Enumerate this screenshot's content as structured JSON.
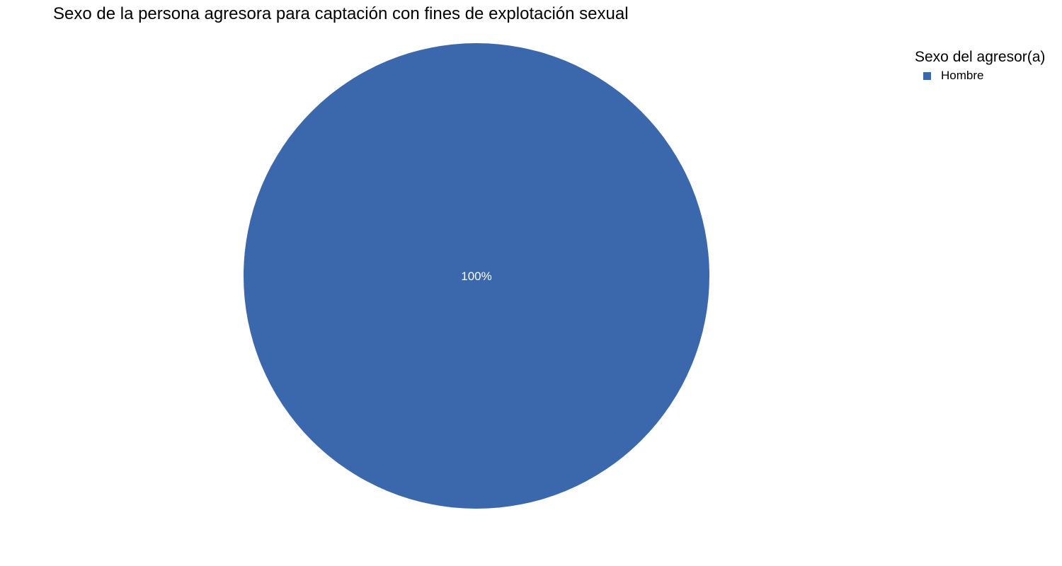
{
  "chart_data": {
    "type": "pie",
    "title": "Sexo de la persona agresora para captación con fines de explotación sexual",
    "legend_title": "Sexo del agresor(a)",
    "legend_position": "top-right",
    "slices": [
      {
        "label": "Hombre",
        "value": 100,
        "display": "100%",
        "color": "#3b68ad"
      }
    ]
  }
}
